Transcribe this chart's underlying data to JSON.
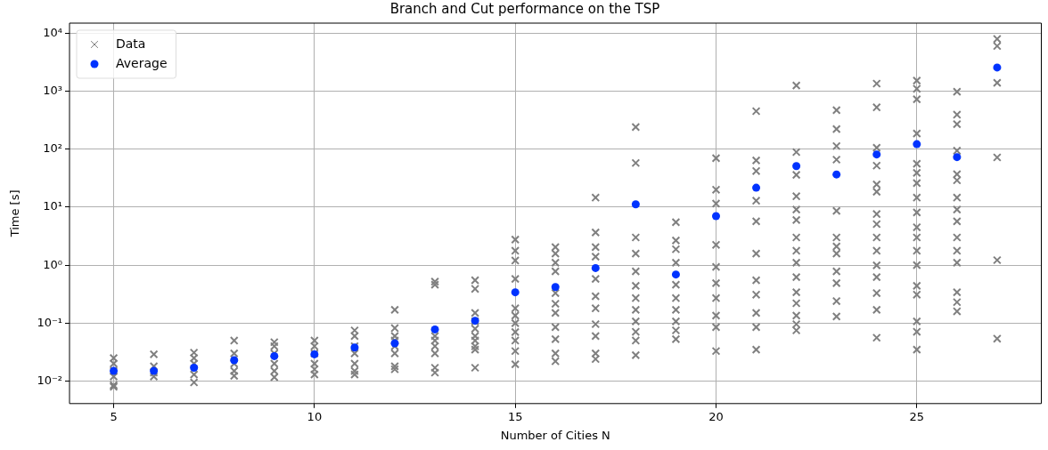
{
  "chart_data": {
    "type": "scatter",
    "title": "Branch and Cut performance on the TSP",
    "xlabel": "Number of Cities N",
    "ylabel": "Time [s]",
    "log": "y",
    "grid": true,
    "legend": "top left",
    "xlim": [
      3.9,
      28.1
    ],
    "xticks": [
      5,
      10,
      15,
      20,
      25
    ],
    "ylim": [
      0.0041,
      14900
    ],
    "yticks": [
      {
        "value": 0.01,
        "label": "10⁻²"
      },
      {
        "value": 0.1,
        "label": "10⁻¹"
      },
      {
        "value": 1,
        "label": "10⁰"
      },
      {
        "value": 10,
        "label": "10¹"
      },
      {
        "value": 100,
        "label": "10²"
      },
      {
        "value": 1000,
        "label": "10³"
      },
      {
        "value": 10000,
        "label": "10⁴"
      }
    ],
    "series": [
      {
        "name": "Data",
        "color": "#808080",
        "marker": "cross",
        "x": [
          5,
          5,
          5,
          5,
          5,
          5,
          6,
          6,
          6,
          6,
          7,
          7,
          7,
          7,
          7,
          8,
          8,
          8,
          8,
          8,
          9,
          9,
          9,
          9,
          9,
          9,
          10,
          10,
          10,
          10,
          10,
          10,
          11,
          11,
          11,
          11,
          11,
          11,
          11,
          12,
          12,
          12,
          12,
          12,
          12,
          12,
          12,
          13,
          13,
          13,
          13,
          13,
          13,
          13,
          13,
          14,
          14,
          14,
          14,
          14,
          14,
          14,
          14,
          14,
          14,
          15,
          15,
          15,
          15,
          15,
          15,
          15,
          15,
          15,
          15,
          15,
          16,
          16,
          16,
          16,
          16,
          16,
          16,
          16,
          16,
          16,
          16,
          17,
          17,
          17,
          17,
          17,
          17,
          17,
          17,
          17,
          17,
          17,
          18,
          18,
          18,
          18,
          18,
          18,
          18,
          18,
          18,
          18,
          18,
          18,
          19,
          19,
          19,
          19,
          19,
          19,
          19,
          19,
          19,
          19,
          20,
          20,
          20,
          20,
          20,
          20,
          20,
          20,
          20,
          20,
          21,
          21,
          21,
          21,
          21,
          21,
          21,
          21,
          21,
          21,
          21,
          22,
          22,
          22,
          22,
          22,
          22,
          22,
          22,
          22,
          22,
          22,
          22,
          22,
          22,
          22,
          23,
          23,
          23,
          23,
          23,
          23,
          23,
          23,
          23,
          23,
          23,
          23,
          24,
          24,
          24,
          24,
          24,
          24,
          24,
          24,
          24,
          24,
          24,
          24,
          24,
          24,
          24,
          25,
          25,
          25,
          25,
          25,
          25,
          25,
          25,
          25,
          25,
          25,
          25,
          25,
          25,
          25,
          25,
          25,
          25,
          26,
          26,
          26,
          26,
          26,
          26,
          26,
          26,
          26,
          26,
          26,
          26,
          26,
          26,
          26,
          27,
          27,
          27,
          27,
          27,
          27
        ],
        "values": [
          0.025,
          0.02,
          0.015,
          0.012,
          0.0085,
          0.008,
          0.029,
          0.018,
          0.014,
          0.012,
          0.031,
          0.025,
          0.02,
          0.013,
          0.0095,
          0.05,
          0.03,
          0.02,
          0.015,
          0.0123,
          0.047,
          0.04,
          0.03,
          0.02,
          0.015,
          0.0117,
          0.05,
          0.04,
          0.03,
          0.02,
          0.016,
          0.013,
          0.075,
          0.06,
          0.04,
          0.03,
          0.02,
          0.015,
          0.013,
          0.17,
          0.082,
          0.06,
          0.05,
          0.04,
          0.03,
          0.018,
          0.016,
          0.52,
          0.46,
          0.06,
          0.05,
          0.04,
          0.03,
          0.017,
          0.014,
          0.55,
          0.39,
          0.15,
          0.107,
          0.08,
          0.06,
          0.05,
          0.04,
          0.035,
          0.017,
          2.76,
          1.77,
          1.2,
          0.58,
          0.18,
          0.135,
          0.1,
          0.07,
          0.05,
          0.033,
          0.0195,
          2.04,
          1.58,
          1.1,
          0.78,
          0.33,
          0.216,
          0.15,
          0.085,
          0.053,
          0.03,
          0.022,
          14.6,
          3.67,
          2.04,
          1.4,
          0.58,
          0.29,
          0.18,
          0.096,
          0.06,
          0.03,
          0.024,
          240,
          57.8,
          3,
          1.58,
          0.78,
          0.44,
          0.27,
          0.17,
          0.107,
          0.071,
          0.05,
          0.028,
          5.5,
          2.67,
          1.88,
          1.1,
          0.46,
          0.27,
          0.17,
          0.107,
          0.075,
          0.053,
          70,
          20,
          11.5,
          2.24,
          0.93,
          0.49,
          0.27,
          0.135,
          0.085,
          0.033,
          452,
          64,
          42,
          12.9,
          5.7,
          1.58,
          0.55,
          0.31,
          0.15,
          0.085,
          0.035,
          1250,
          89,
          36,
          15.4,
          9.1,
          6,
          3,
          1.77,
          1.1,
          0.62,
          0.34,
          0.22,
          0.135,
          0.096,
          0.075,
          470,
          222,
          113,
          66,
          8.6,
          3,
          2.1,
          1.58,
          0.78,
          0.49,
          0.24,
          0.13,
          1350,
          526,
          106,
          52,
          24.6,
          18.4,
          7.6,
          5.1,
          3,
          1.77,
          0.99,
          0.62,
          0.33,
          0.17,
          0.056,
          1520,
          1100,
          725,
          186,
          56,
          39,
          26,
          14.6,
          8.1,
          4.5,
          3,
          1.77,
          1,
          0.44,
          0.31,
          0.107,
          0.071,
          0.035,
          980,
          393,
          270,
          94,
          37,
          29,
          14.6,
          9.1,
          5.7,
          3,
          1.77,
          1.1,
          0.34,
          0.23,
          0.16,
          7950,
          6000,
          1390,
          72,
          1.22,
          0.054
        ]
      },
      {
        "name": "Average",
        "color": "#0033ff",
        "marker": "circle",
        "x": [
          5,
          6,
          7,
          8,
          9,
          10,
          11,
          12,
          13,
          14,
          15,
          16,
          17,
          18,
          19,
          20,
          21,
          22,
          23,
          24,
          25,
          26,
          27
        ],
        "values": [
          0.015,
          0.015,
          0.017,
          0.023,
          0.027,
          0.029,
          0.038,
          0.045,
          0.078,
          0.11,
          0.34,
          0.42,
          0.89,
          11.2,
          0.69,
          7,
          21.6,
          51,
          36.6,
          81,
          122,
          73,
          2560
        ]
      }
    ]
  }
}
